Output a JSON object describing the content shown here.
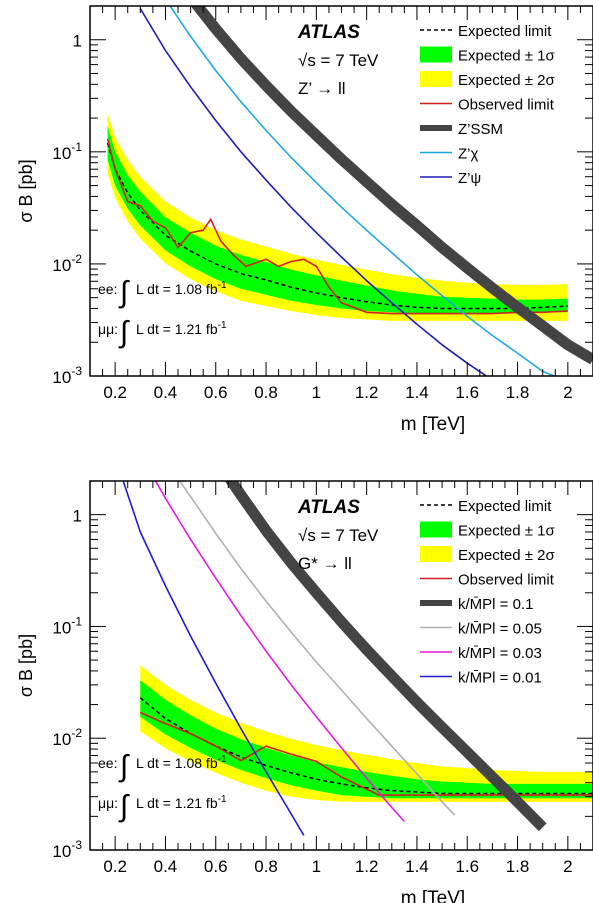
{
  "chart_data": [
    {
      "type": "line",
      "experiment": "ATLAS",
      "energy_label": "√s = 7 TeV",
      "process_label": "Z’ → ll",
      "xlabel": "m [TeV]",
      "ylabel": "σ B [pb]",
      "xlim": [
        0.1,
        2.1
      ],
      "ylim": [
        0.001,
        2
      ],
      "yscale": "log",
      "x_ticks": [
        "0.2",
        "0.4",
        "0.6",
        "0.8",
        "1",
        "1.2",
        "1.4",
        "1.6",
        "1.8",
        "2"
      ],
      "y_ticks": [
        "10^-3",
        "10^-2",
        "10^-1",
        "1"
      ],
      "legend": [
        "Expected limit",
        "Expected ± 1σ",
        "Expected ± 2σ",
        "Observed limit",
        "Z’SSM",
        "Z’χ",
        "Z’ψ"
      ],
      "lumi": [
        {
          "channel": "ee:",
          "text": "L dt = 1.08 fb",
          "exp": "-1"
        },
        {
          "channel": "μμ:",
          "text": "L dt = 1.21 fb",
          "exp": "-1"
        }
      ],
      "expected": {
        "x": [
          0.17,
          0.2,
          0.25,
          0.3,
          0.4,
          0.5,
          0.6,
          0.7,
          0.8,
          0.9,
          1.0,
          1.1,
          1.2,
          1.3,
          1.4,
          1.5,
          1.6,
          1.7,
          1.8,
          1.9,
          2.0
        ],
        "y": [
          0.12,
          0.07,
          0.043,
          0.03,
          0.018,
          0.013,
          0.01,
          0.0082,
          0.0072,
          0.0062,
          0.0055,
          0.005,
          0.0046,
          0.0043,
          0.0041,
          0.004,
          0.004,
          0.004,
          0.004,
          0.0041,
          0.0042
        ]
      },
      "band_1sigma": {
        "x": [
          0.17,
          0.2,
          0.25,
          0.3,
          0.4,
          0.5,
          0.6,
          0.7,
          0.8,
          0.9,
          1.0,
          1.1,
          1.2,
          1.3,
          1.4,
          1.5,
          1.6,
          1.7,
          1.8,
          1.9,
          2.0
        ],
        "lo": [
          0.085,
          0.05,
          0.031,
          0.022,
          0.0132,
          0.0095,
          0.0073,
          0.006,
          0.0053,
          0.0047,
          0.0043,
          0.004,
          0.0038,
          0.0037,
          0.0036,
          0.0036,
          0.0036,
          0.0036,
          0.0036,
          0.0037,
          0.0037
        ],
        "hi": [
          0.17,
          0.1,
          0.062,
          0.044,
          0.026,
          0.019,
          0.0145,
          0.012,
          0.0104,
          0.0089,
          0.0079,
          0.0071,
          0.0064,
          0.0058,
          0.0054,
          0.0051,
          0.005,
          0.0049,
          0.0048,
          0.0048,
          0.0049
        ]
      },
      "band_2sigma": {
        "x": [
          0.17,
          0.2,
          0.25,
          0.3,
          0.4,
          0.5,
          0.6,
          0.7,
          0.8,
          0.9,
          1.0,
          1.1,
          1.2,
          1.3,
          1.4,
          1.5,
          1.6,
          1.7,
          1.8,
          1.9,
          2.0
        ],
        "lo": [
          0.065,
          0.039,
          0.024,
          0.0168,
          0.0101,
          0.0073,
          0.0057,
          0.0047,
          0.0042,
          0.0038,
          0.0035,
          0.0033,
          0.0032,
          0.0031,
          0.0031,
          0.0031,
          0.0031,
          0.0031,
          0.0031,
          0.0031,
          0.0031
        ],
        "hi": [
          0.22,
          0.135,
          0.085,
          0.06,
          0.036,
          0.026,
          0.02,
          0.0165,
          0.0143,
          0.0123,
          0.0109,
          0.0098,
          0.0089,
          0.0081,
          0.0075,
          0.0071,
          0.0068,
          0.0066,
          0.0065,
          0.0065,
          0.0066
        ]
      },
      "observed": {
        "x": [
          0.17,
          0.2,
          0.25,
          0.3,
          0.35,
          0.4,
          0.45,
          0.5,
          0.55,
          0.58,
          0.62,
          0.67,
          0.72,
          0.8,
          0.85,
          0.9,
          0.95,
          1.0,
          1.05,
          1.1,
          1.2,
          1.3,
          1.4,
          1.5,
          1.6,
          1.7,
          1.8,
          1.9,
          2.0
        ],
        "y": [
          0.13,
          0.07,
          0.036,
          0.033,
          0.024,
          0.021,
          0.014,
          0.019,
          0.02,
          0.025,
          0.016,
          0.012,
          0.0095,
          0.011,
          0.0095,
          0.0105,
          0.011,
          0.0095,
          0.0062,
          0.0045,
          0.0037,
          0.0036,
          0.0036,
          0.0036,
          0.0036,
          0.0036,
          0.0037,
          0.0037,
          0.0038
        ]
      },
      "theory": [
        {
          "name": "Z’SSM",
          "color": "#444444",
          "width": 11,
          "x": [
            0.5,
            0.6,
            0.7,
            0.8,
            0.9,
            1.0,
            1.1,
            1.2,
            1.3,
            1.4,
            1.5,
            1.6,
            1.7,
            1.8,
            1.9,
            2.0,
            2.1
          ],
          "y": [
            2.4,
            1.25,
            0.68,
            0.39,
            0.23,
            0.14,
            0.086,
            0.054,
            0.034,
            0.022,
            0.014,
            0.0092,
            0.0061,
            0.0041,
            0.0028,
            0.0019,
            0.0014
          ]
        },
        {
          "name": "Z’χ",
          "color": "#1fa8e0",
          "width": 1.6,
          "x": [
            0.4,
            0.5,
            0.6,
            0.7,
            0.8,
            0.9,
            1.0,
            1.1,
            1.2,
            1.3,
            1.4,
            1.5,
            1.6,
            1.7,
            1.8,
            1.9,
            1.97
          ],
          "y": [
            2.3,
            1.07,
            0.53,
            0.28,
            0.155,
            0.089,
            0.053,
            0.032,
            0.02,
            0.0126,
            0.008,
            0.0052,
            0.0034,
            0.0023,
            0.0016,
            0.0011,
            0.00095
          ]
        },
        {
          "name": "Z’ψ",
          "color": "#1c1cb4",
          "width": 1.6,
          "x": [
            0.3,
            0.4,
            0.5,
            0.6,
            0.7,
            0.8,
            0.9,
            1.0,
            1.1,
            1.2,
            1.3,
            1.4,
            1.5,
            1.6,
            1.7,
            1.8,
            1.85
          ],
          "y": [
            1.9,
            0.8,
            0.38,
            0.19,
            0.1,
            0.056,
            0.032,
            0.019,
            0.0115,
            0.0071,
            0.0045,
            0.0029,
            0.0019,
            0.0013,
            0.00092,
            0.00066,
            0.00056
          ]
        }
      ]
    },
    {
      "type": "line",
      "experiment": "ATLAS",
      "energy_label": "√s = 7 TeV",
      "process_label": "G* → ll",
      "xlabel": "m [TeV]",
      "ylabel": "σ B [pb]",
      "xlim": [
        0.1,
        2.1
      ],
      "ylim": [
        0.001,
        2
      ],
      "yscale": "log",
      "x_ticks": [
        "0.2",
        "0.4",
        "0.6",
        "0.8",
        "1",
        "1.2",
        "1.4",
        "1.6",
        "1.8",
        "2"
      ],
      "y_ticks": [
        "10^-3",
        "10^-2",
        "10^-1",
        "1"
      ],
      "legend": [
        "Expected limit",
        "Expected ± 1σ",
        "Expected ± 2σ",
        "Observed limit",
        "k/M̄Pl = 0.1",
        "k/M̄Pl = 0.05",
        "k/M̄Pl = 0.03",
        "k/M̄Pl = 0.01"
      ],
      "lumi": [
        {
          "channel": "ee:",
          "text": "L dt = 1.08 fb",
          "exp": "-1"
        },
        {
          "channel": "μμ:",
          "text": "L dt = 1.21 fb",
          "exp": "-1"
        }
      ],
      "expected": {
        "x": [
          0.3,
          0.4,
          0.5,
          0.6,
          0.7,
          0.8,
          0.9,
          1.0,
          1.1,
          1.2,
          1.3,
          1.4,
          1.5,
          1.6,
          1.7,
          1.8,
          1.9,
          2.0,
          2.1
        ],
        "y": [
          0.023,
          0.015,
          0.011,
          0.0085,
          0.0068,
          0.0057,
          0.0049,
          0.0043,
          0.0039,
          0.0036,
          0.0034,
          0.0033,
          0.0032,
          0.0032,
          0.0032,
          0.0032,
          0.0032,
          0.0032,
          0.0032
        ]
      },
      "band_1sigma": {
        "x": [
          0.3,
          0.4,
          0.5,
          0.6,
          0.7,
          0.8,
          0.9,
          1.0,
          1.1,
          1.2,
          1.3,
          1.4,
          1.5,
          1.6,
          1.7,
          1.8,
          1.9,
          2.0,
          2.1
        ],
        "lo": [
          0.0155,
          0.0108,
          0.0082,
          0.0064,
          0.0052,
          0.0044,
          0.0038,
          0.0034,
          0.0031,
          0.003,
          0.0029,
          0.0029,
          0.0029,
          0.0029,
          0.0029,
          0.0029,
          0.0029,
          0.0029,
          0.0029
        ],
        "hi": [
          0.033,
          0.022,
          0.016,
          0.0122,
          0.0098,
          0.0082,
          0.007,
          0.0061,
          0.0055,
          0.005,
          0.0046,
          0.0043,
          0.0041,
          0.004,
          0.0039,
          0.0039,
          0.0039,
          0.0039,
          0.0039
        ]
      },
      "band_2sigma": {
        "x": [
          0.3,
          0.4,
          0.5,
          0.6,
          0.7,
          0.8,
          0.9,
          1.0,
          1.1,
          1.2,
          1.3,
          1.4,
          1.5,
          1.6,
          1.7,
          1.8,
          1.9,
          2.0,
          2.1
        ],
        "lo": [
          0.0115,
          0.0081,
          0.0062,
          0.0049,
          0.004,
          0.0034,
          0.003,
          0.0028,
          0.0027,
          0.0027,
          0.0027,
          0.0027,
          0.0027,
          0.0027,
          0.0027,
          0.0027,
          0.0027,
          0.0027,
          0.0027
        ],
        "hi": [
          0.045,
          0.03,
          0.022,
          0.017,
          0.0137,
          0.0115,
          0.0099,
          0.0087,
          0.0078,
          0.0071,
          0.0065,
          0.006,
          0.0056,
          0.0054,
          0.0052,
          0.0051,
          0.005,
          0.005,
          0.005
        ]
      },
      "observed": {
        "x": [
          0.3,
          0.4,
          0.5,
          0.6,
          0.7,
          0.8,
          0.9,
          1.0,
          1.1,
          1.2,
          1.25,
          1.3,
          1.4,
          1.5,
          1.6,
          1.7,
          1.8,
          1.9,
          2.0,
          2.1
        ],
        "y": [
          0.017,
          0.0135,
          0.011,
          0.0085,
          0.0063,
          0.0085,
          0.0072,
          0.0062,
          0.0045,
          0.0035,
          0.0031,
          0.0031,
          0.0031,
          0.0031,
          0.0031,
          0.0031,
          0.0031,
          0.0031,
          0.0031,
          0.0031
        ]
      },
      "theory": [
        {
          "name": "k/M̄Pl = 0.1",
          "color": "#444444",
          "width": 11,
          "x": [
            0.65,
            0.7,
            0.8,
            0.9,
            1.0,
            1.1,
            1.2,
            1.3,
            1.4,
            1.5,
            1.6,
            1.7,
            1.8,
            1.9
          ],
          "y": [
            2.2,
            1.5,
            0.72,
            0.37,
            0.2,
            0.11,
            0.062,
            0.036,
            0.021,
            0.0125,
            0.0075,
            0.0045,
            0.0027,
            0.0016
          ]
        },
        {
          "name": "k/M̄Pl = 0.05",
          "color": "#b0b0b0",
          "width": 1.6,
          "x": [
            0.45,
            0.5,
            0.6,
            0.7,
            0.8,
            0.9,
            1.0,
            1.1,
            1.2,
            1.3,
            1.4,
            1.5,
            1.55
          ],
          "y": [
            2.1,
            1.45,
            0.68,
            0.33,
            0.168,
            0.089,
            0.048,
            0.027,
            0.015,
            0.0085,
            0.0048,
            0.0027,
            0.00205
          ]
        },
        {
          "name": "k/M̄Pl = 0.03",
          "color": "#e619e0",
          "width": 1.6,
          "x": [
            0.35,
            0.4,
            0.5,
            0.6,
            0.7,
            0.8,
            0.9,
            1.0,
            1.1,
            1.2,
            1.3,
            1.35
          ],
          "y": [
            2.2,
            1.4,
            0.6,
            0.27,
            0.125,
            0.06,
            0.03,
            0.0155,
            0.0082,
            0.0044,
            0.0024,
            0.0018
          ]
        },
        {
          "name": "k/M̄Pl = 0.01",
          "color": "#1c1cd8",
          "width": 1.6,
          "x": [
            0.22,
            0.3,
            0.4,
            0.5,
            0.6,
            0.7,
            0.8,
            0.9,
            0.95
          ],
          "y": [
            2.4,
            0.7,
            0.23,
            0.082,
            0.031,
            0.0122,
            0.005,
            0.0021,
            0.00135
          ]
        }
      ]
    }
  ]
}
